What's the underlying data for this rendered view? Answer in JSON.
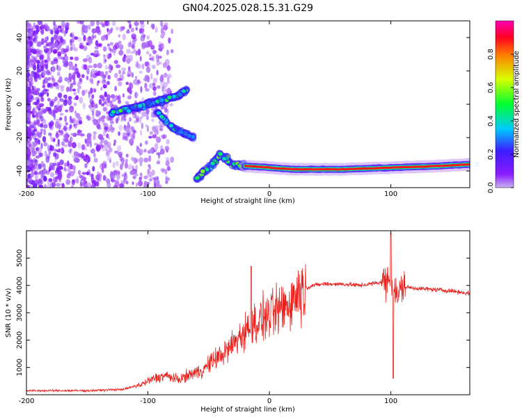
{
  "title": "GN04.2025.028.15.31.G29",
  "colors": {
    "snr_line": "#e8201c",
    "axis": "#000000",
    "background": "#ffffff"
  },
  "chart_data": [
    {
      "type": "heatmap",
      "panel": "top",
      "title": "GN04.2025.028.15.31.G29",
      "xlabel": "Height of straight line (km)",
      "ylabel": "Frequency (Hz)",
      "xlim": [
        -200,
        165
      ],
      "ylim": [
        -50,
        50
      ],
      "xticks": [
        "-200",
        "-100",
        "0",
        "100"
      ],
      "xtick_values": [
        -200,
        -100,
        0,
        100
      ],
      "yticks": [
        "-40",
        "-20",
        "0",
        "20",
        "40"
      ],
      "ytick_values": [
        -40,
        -20,
        0,
        20,
        40
      ],
      "colormap": "rainbow (violet → blue → cyan → green → yellow → red → magenta)",
      "colorbar": {
        "label": "Normalized spectral amplitude",
        "range": [
          0,
          1
        ],
        "ticks": [
          "0.0",
          "0.2",
          "0.4",
          "0.6",
          "0.8"
        ],
        "tick_values": [
          0.0,
          0.2,
          0.4,
          0.6,
          0.8
        ]
      },
      "features": [
        {
          "description": "scattered noise",
          "x_range": [
            -200,
            -80
          ],
          "freq_range": [
            -50,
            50
          ],
          "amplitude": "low (0.0-0.1)"
        },
        {
          "description": "rising track",
          "x_points": [
            -130,
            -110,
            -90,
            -75,
            -68
          ],
          "freq_points": [
            -5,
            -2,
            2,
            5,
            9
          ],
          "amplitude": "0.3-0.5"
        },
        {
          "description": "lower branch",
          "x_points": [
            -95,
            -80,
            -62
          ],
          "freq_points": [
            -3,
            -14,
            -20
          ],
          "amplitude": "0.2-0.4"
        },
        {
          "description": "falling track",
          "x_points": [
            -60,
            -50,
            -40,
            -30,
            -20
          ],
          "freq_points": [
            -45,
            -38,
            -30,
            -36,
            -37
          ],
          "amplitude": "0.3-0.6"
        },
        {
          "description": "main stable track",
          "x_points": [
            -20,
            0,
            20,
            60,
            100,
            140,
            165
          ],
          "freq_points": [
            -37,
            -38,
            -39,
            -39,
            -38,
            -37,
            -36
          ],
          "amplitude": "0.7-1.0"
        }
      ]
    },
    {
      "type": "line",
      "panel": "bottom",
      "xlabel": "Height of straight line (km)",
      "ylabel": "SNR (10 * v/v)",
      "xlim": [
        -200,
        165
      ],
      "ylim": [
        0,
        6000
      ],
      "xticks": [
        "-200",
        "-100",
        "0",
        "100"
      ],
      "xtick_values": [
        -200,
        -100,
        0,
        100
      ],
      "yticks": [
        "1000",
        "2000",
        "3000",
        "4000",
        "5000"
      ],
      "ytick_values": [
        1000,
        2000,
        3000,
        4000,
        5000
      ],
      "series": [
        {
          "x": [
            -200,
            -150,
            -120,
            -105,
            -95,
            -85,
            -75,
            -65,
            -55,
            -45,
            -35,
            -25,
            -15,
            -5,
            5,
            15,
            25,
            35,
            45,
            60,
            75,
            90,
            100,
            105,
            110,
            120,
            135,
            150,
            165
          ],
          "values": [
            150,
            150,
            200,
            380,
            600,
            700,
            550,
            750,
            900,
            1300,
            1600,
            2100,
            2500,
            2800,
            3000,
            3300,
            3800,
            4000,
            4050,
            4050,
            4000,
            4100,
            4250,
            3600,
            3950,
            3900,
            3850,
            3800,
            3700
          ]
        }
      ],
      "annotations_noise": [
        {
          "x": -15,
          "peak": 4700
        },
        {
          "x": 100,
          "peak": 5900
        },
        {
          "x": 102,
          "trough": 600
        }
      ]
    }
  ]
}
